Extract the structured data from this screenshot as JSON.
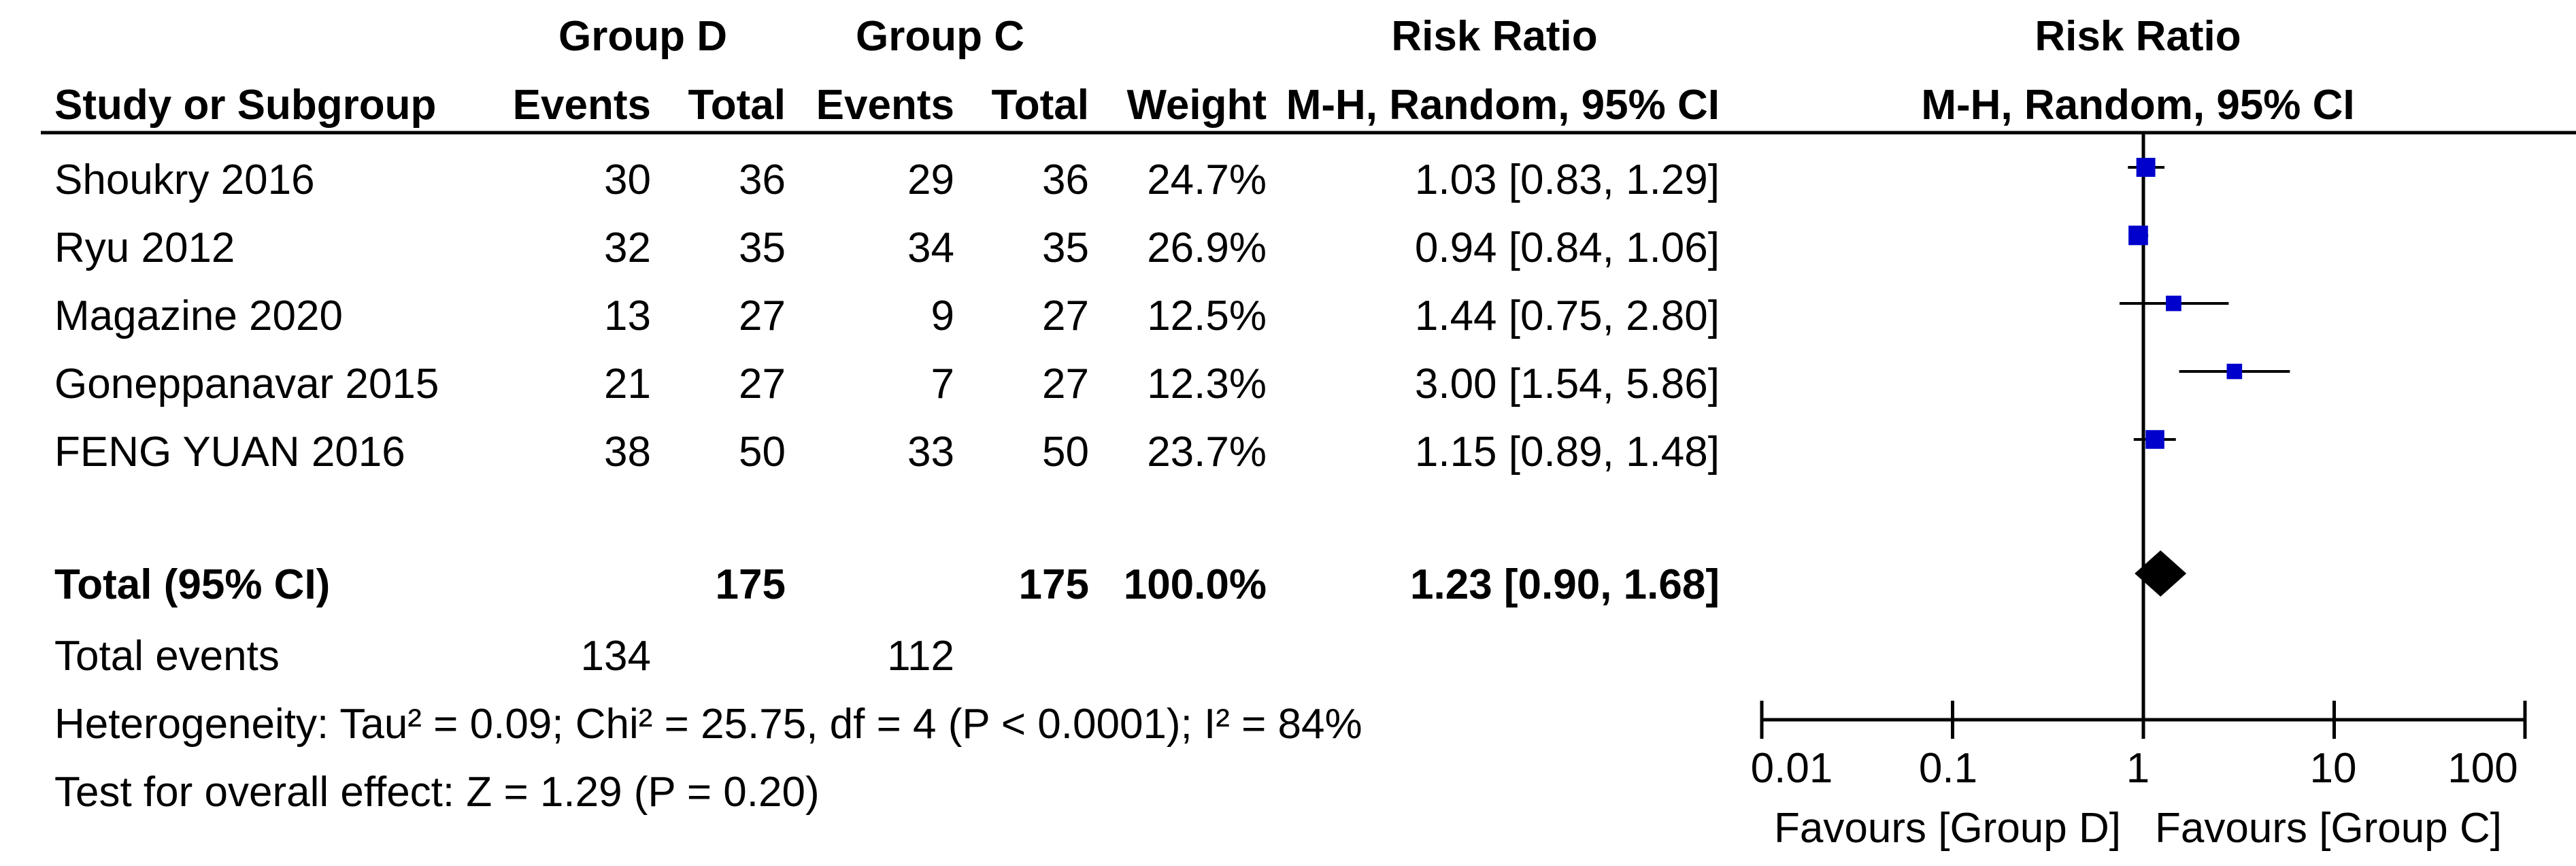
{
  "header": {
    "group_d": "Group D",
    "group_c": "Group C",
    "risk_ratio_table": "Risk Ratio",
    "risk_ratio_plot": "Risk Ratio",
    "study_col": "Study or Subgroup",
    "events_d": "Events",
    "total_d": "Total",
    "events_c": "Events",
    "total_c": "Total",
    "weight": "Weight",
    "method_table": "M-H, Random, 95% CI",
    "method_plot": "M-H, Random, 95% CI"
  },
  "studies": [
    {
      "name": "Shoukry 2016",
      "events_d": "30",
      "total_d": "36",
      "events_c": "29",
      "total_c": "36",
      "weight": "24.7%",
      "ci_text": "1.03 [0.83, 1.29]"
    },
    {
      "name": "Ryu 2012",
      "events_d": "32",
      "total_d": "35",
      "events_c": "34",
      "total_c": "35",
      "weight": "26.9%",
      "ci_text": "0.94 [0.84, 1.06]"
    },
    {
      "name": "Magazine 2020",
      "events_d": "13",
      "total_d": "27",
      "events_c": "9",
      "total_c": "27",
      "weight": "12.5%",
      "ci_text": "1.44 [0.75, 2.80]"
    },
    {
      "name": "Goneppanavar 2015",
      "events_d": "21",
      "total_d": "27",
      "events_c": "7",
      "total_c": "27",
      "weight": "12.3%",
      "ci_text": "3.00 [1.54, 5.86]"
    },
    {
      "name": "FENG YUAN 2016",
      "events_d": "38",
      "total_d": "50",
      "events_c": "33",
      "total_c": "50",
      "weight": "23.7%",
      "ci_text": "1.15 [0.89, 1.48]"
    }
  ],
  "total": {
    "label": "Total (95% CI)",
    "total_d": "175",
    "total_c": "175",
    "weight": "100.0%",
    "ci_text": "1.23 [0.90, 1.68]"
  },
  "total_events": {
    "label": "Total events",
    "events_d": "134",
    "events_c": "112"
  },
  "heterogeneity": "Heterogeneity: Tau² = 0.09; Chi² = 25.75, df = 4 (P < 0.0001); I² = 84%",
  "overall_effect": "Test for overall effect: Z = 1.29 (P = 0.20)",
  "axis": {
    "ticks": [
      "0.01",
      "0.1",
      "1",
      "10",
      "100"
    ],
    "favours_left": "Favours [Group D]",
    "favours_right": "Favours [Group C]"
  },
  "colors": {
    "marker": "#0000cc",
    "line": "#000000",
    "diamond": "#000000"
  },
  "chart_data": {
    "type": "forest",
    "scale": "log",
    "xlim": [
      0.01,
      100
    ],
    "null_line": 1,
    "points": [
      {
        "study": "Shoukry 2016",
        "rr": 1.03,
        "lo": 0.83,
        "hi": 1.29,
        "weight": 24.7
      },
      {
        "study": "Ryu 2012",
        "rr": 0.94,
        "lo": 0.84,
        "hi": 1.06,
        "weight": 26.9
      },
      {
        "study": "Magazine 2020",
        "rr": 1.44,
        "lo": 0.75,
        "hi": 2.8,
        "weight": 12.5
      },
      {
        "study": "Goneppanavar 2015",
        "rr": 3.0,
        "lo": 1.54,
        "hi": 5.86,
        "weight": 12.3
      },
      {
        "study": "FENG YUAN 2016",
        "rr": 1.15,
        "lo": 0.89,
        "hi": 1.48,
        "weight": 23.7
      }
    ],
    "pooled": {
      "rr": 1.23,
      "lo": 0.9,
      "hi": 1.68
    }
  }
}
